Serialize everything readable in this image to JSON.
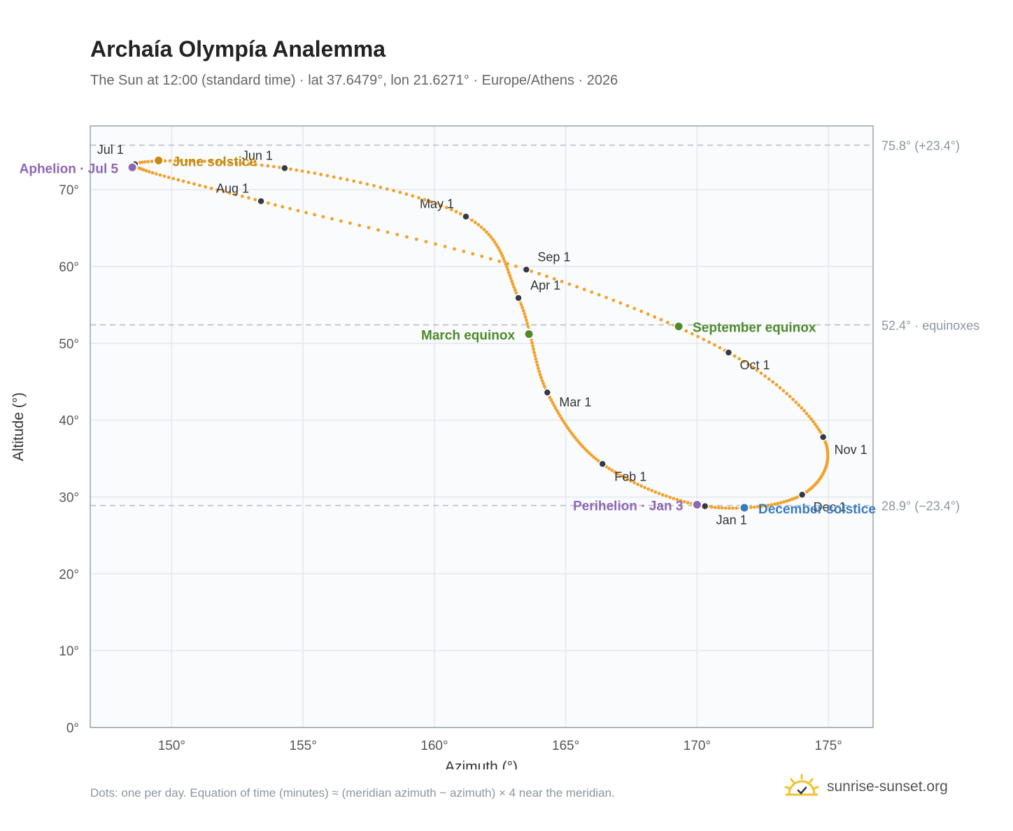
{
  "chart_data": {
    "type": "scatter",
    "title": "Archaía Olympía Analemma",
    "subtitle": "The Sun at 12:00 (standard time) · lat 37.6479°, lon 21.6271° · Europe/Athens · 2026",
    "xlabel": "Azimuth (°)",
    "ylabel": "Altitude (°)",
    "xlim": [
      146.9,
      176.7
    ],
    "ylim": [
      0,
      78.3
    ],
    "xticks": [
      150,
      155,
      160,
      165,
      170,
      175
    ],
    "yticks": [
      0,
      10,
      20,
      30,
      40,
      50,
      60,
      70
    ],
    "tick_suffix": "°",
    "grid": true,
    "reference_lines": [
      {
        "y": 75.8,
        "label": "75.8° (+23.4°)"
      },
      {
        "y": 52.4,
        "label": "52.4° · equinoxes"
      },
      {
        "y": 28.9,
        "label": "28.9° (−23.4°)"
      }
    ],
    "curve_color": "#f2a22a",
    "month_marker_color": "#333a44",
    "monthly_points": [
      {
        "label": "Jan 1",
        "az": 170.3,
        "alt": 28.8
      },
      {
        "label": "Feb 1",
        "az": 166.4,
        "alt": 34.3
      },
      {
        "label": "Mar 1",
        "az": 164.3,
        "alt": 43.6
      },
      {
        "label": "Apr 1",
        "az": 163.2,
        "alt": 55.9
      },
      {
        "label": "May 1",
        "az": 161.2,
        "alt": 66.5
      },
      {
        "label": "Jun 1",
        "az": 154.3,
        "alt": 72.8
      },
      {
        "label": "Jul 1",
        "az": 148.6,
        "alt": 73.3
      },
      {
        "label": "Aug 1",
        "az": 153.4,
        "alt": 68.5
      },
      {
        "label": "Sep 1",
        "az": 163.5,
        "alt": 59.6
      },
      {
        "label": "Oct 1",
        "az": 171.2,
        "alt": 48.8
      },
      {
        "label": "Nov 1",
        "az": 174.8,
        "alt": 37.8
      },
      {
        "label": "Dec 1",
        "az": 174.0,
        "alt": 30.3
      }
    ],
    "events": [
      {
        "label": "March equinox",
        "az": 163.6,
        "alt": 51.2,
        "color": "#4f8a2b"
      },
      {
        "label": "June solstice",
        "az": 149.5,
        "alt": 73.8,
        "color": "#c48a12"
      },
      {
        "label": "September equinox",
        "az": 169.3,
        "alt": 52.2,
        "color": "#4f8a2b"
      },
      {
        "label": "December solstice",
        "az": 171.8,
        "alt": 28.6,
        "color": "#3a7bbf"
      },
      {
        "label": "Perihelion · Jan 3",
        "az": 170.0,
        "alt": 29.0,
        "color": "#8e67b3"
      },
      {
        "label": "Aphelion · Jul 5",
        "az": 148.5,
        "alt": 72.9,
        "color": "#8e67b3"
      }
    ]
  },
  "footnote": "Dots: one per day. Equation of time (minutes) ≈ (meridian azimuth − azimuth) × 4 near the meridian.",
  "brand": "sunrise-sunset.org",
  "brand_icon": "sun-check-icon",
  "brand_color": "#f2c12e"
}
